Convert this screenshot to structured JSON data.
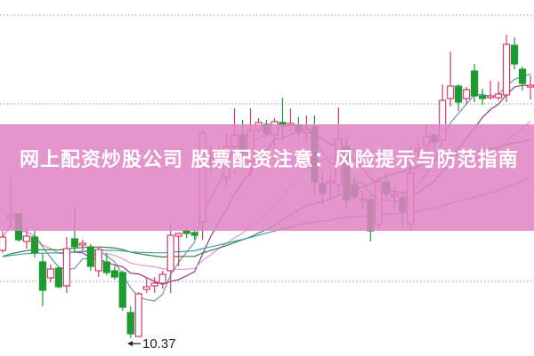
{
  "title": "网上配资炒股公司 股票配资注意：风险提示与防范指南",
  "chart_data": {
    "type": "candlestick",
    "annotations": [
      {
        "text": "10.37",
        "target": "lowest low"
      }
    ],
    "grid": "horizontal dotted",
    "moving_averages": [
      "MA5",
      "MA10",
      "MA20",
      "MA30",
      "MA60"
    ],
    "colors": {
      "up": "#d23a6a",
      "down": "#1e9a32",
      "ma5": "#6a9aa6",
      "ma10": "#8a3a78",
      "ma20": "#e39ad6",
      "ma30": "#3f7f3f",
      "ma60": "#3aa0b0",
      "banner": "#de84c4"
    },
    "candles": [
      [
        12.35,
        12.79,
        12.29,
        12.65
      ],
      [
        13.09,
        13.99,
        12.89,
        13.15
      ],
      [
        13.17,
        13.19,
        12.55,
        12.59
      ],
      [
        12.55,
        12.89,
        12.39,
        12.67
      ],
      [
        12.65,
        12.83,
        12.19,
        12.29
      ],
      [
        12.09,
        12.29,
        11.09,
        11.45
      ],
      [
        11.73,
        12.03,
        11.63,
        11.93
      ],
      [
        11.95,
        11.99,
        11.49,
        11.53
      ],
      [
        11.55,
        12.65,
        11.39,
        12.39
      ],
      [
        12.61,
        13.27,
        12.29,
        12.43
      ],
      [
        12.47,
        12.59,
        12.35,
        12.51
      ],
      [
        12.43,
        12.49,
        11.89,
        11.99
      ],
      [
        11.89,
        12.43,
        11.75,
        12.37
      ],
      [
        12.09,
        12.29,
        11.79,
        11.85
      ],
      [
        11.89,
        11.99,
        11.69,
        11.75
      ],
      [
        11.85,
        11.89,
        10.99,
        11.07
      ],
      [
        10.95,
        11.09,
        10.37,
        10.47
      ],
      [
        10.41,
        11.41,
        10.41,
        11.37
      ],
      [
        11.47,
        11.73,
        11.39,
        11.53
      ],
      [
        11.55,
        11.75,
        11.39,
        11.61
      ],
      [
        11.61,
        11.89,
        11.49,
        11.81
      ],
      [
        11.89,
        12.99,
        11.39,
        12.69
      ],
      [
        12.67,
        12.75,
        11.99,
        12.73
      ],
      [
        12.79,
        12.83,
        12.63,
        12.73
      ],
      [
        12.75,
        12.83,
        12.59,
        12.69
      ],
      [
        12.99,
        15.09,
        12.59,
        14.99
      ],
      [
        14.41,
        14.69,
        14.09,
        14.43
      ],
      [
        14.43,
        14.69,
        14.19,
        14.45
      ],
      [
        13.99,
        14.99,
        13.79,
        14.69
      ],
      [
        14.69,
        15.55,
        14.09,
        14.95
      ],
      [
        14.95,
        15.29,
        14.39,
        14.55
      ],
      [
        14.35,
        15.55,
        13.99,
        15.05
      ],
      [
        15.07,
        15.33,
        14.99,
        15.23
      ],
      [
        15.19,
        15.29,
        14.89,
        14.99
      ],
      [
        14.95,
        15.33,
        14.69,
        15.25
      ],
      [
        15.23,
        15.79,
        14.85,
        15.17
      ],
      [
        15.17,
        15.55,
        15.03,
        15.21
      ],
      [
        15.17,
        15.35,
        14.87,
        15.03
      ],
      [
        14.99,
        15.39,
        14.79,
        15.07
      ],
      [
        15.13,
        15.39,
        13.63,
        13.89
      ],
      [
        13.85,
        14.09,
        13.39,
        13.63
      ],
      [
        13.87,
        14.09,
        13.49,
        13.91
      ],
      [
        13.83,
        15.57,
        13.59,
        14.85
      ],
      [
        14.69,
        14.89,
        13.29,
        13.49
      ],
      [
        13.83,
        13.99,
        13.49,
        13.55
      ],
      [
        13.47,
        13.69,
        13.29,
        13.51
      ],
      [
        13.49,
        13.59,
        12.55,
        12.79
      ],
      [
        12.93,
        13.99,
        12.83,
        13.89
      ],
      [
        13.89,
        14.09,
        13.49,
        13.63
      ],
      [
        13.57,
        13.79,
        13.29,
        13.61
      ],
      [
        13.53,
        13.69,
        12.89,
        13.23
      ],
      [
        12.95,
        14.69,
        12.79,
        14.09
      ],
      [
        14.59,
        14.79,
        14.43,
        14.65
      ],
      [
        14.71,
        15.19,
        14.59,
        14.91
      ],
      [
        14.95,
        14.99,
        14.59,
        14.79
      ],
      [
        14.83,
        16.09,
        14.79,
        15.73
      ],
      [
        15.77,
        16.83,
        15.59,
        16.05
      ],
      [
        16.05,
        16.09,
        15.49,
        15.69
      ],
      [
        15.77,
        16.03,
        15.63,
        15.97
      ],
      [
        16.39,
        16.55,
        15.69,
        15.83
      ],
      [
        15.83,
        15.99,
        15.63,
        15.77
      ],
      [
        15.79,
        16.17,
        15.75,
        15.83
      ],
      [
        15.79,
        16.15,
        15.73,
        15.87
      ],
      [
        15.85,
        17.21,
        15.69,
        16.99
      ],
      [
        16.97,
        17.15,
        16.43,
        16.55
      ],
      [
        16.43,
        16.49,
        15.95,
        16.11
      ],
      [
        16.03,
        16.29,
        15.75,
        16.07
      ]
    ]
  }
}
